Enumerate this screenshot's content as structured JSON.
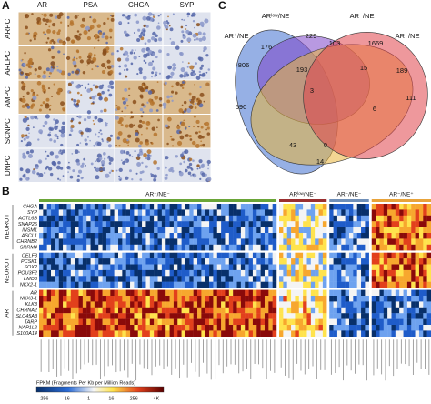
{
  "panel_a": {
    "label": "A",
    "columns": [
      "AR",
      "PSA",
      "CHGA",
      "SYP"
    ],
    "rows": [
      "ARPC",
      "ARLPC",
      "AMPC",
      "SCNPC",
      "DNPC"
    ]
  },
  "panel_c": {
    "label": "C",
    "sets": [
      "AR⁺/NE⁻",
      "ARˡᵒʷ/NE⁻",
      "AR⁻/NE⁺",
      "AR⁻/NE⁻"
    ],
    "counts": [
      "806",
      "176",
      "229",
      "103",
      "1669",
      "189",
      "193",
      "15",
      "111",
      "590",
      "3",
      "43",
      "0",
      "6",
      "14"
    ]
  },
  "panel_b": {
    "label": "B",
    "groups": [
      "AR⁺/NE⁻",
      "ARˡᵒʷ/NE⁻",
      "AR⁻/NE⁻",
      "AR⁻/NE⁺"
    ],
    "gene_sets": [
      {
        "name": "NEURO I",
        "genes": [
          "CHGA",
          "SYP",
          "ACTL6B",
          "SNAP25",
          "INSM1",
          "ASCL1",
          "CHRNB2",
          "SRRM4"
        ]
      },
      {
        "name": "NEURO II",
        "genes": [
          "CELF3",
          "PCSK1",
          "SOX2",
          "POU3F2",
          "LMO3",
          "NKX2-1"
        ]
      },
      {
        "name": "AR",
        "genes": [
          "AR",
          "NKX3-1",
          "KLK3",
          "CHRNA2",
          "SLC45A3",
          "TARP",
          "NAP1L2",
          "S100A14"
        ]
      }
    ],
    "colorbar": {
      "title": "FPKM (Fragments Per Kb per Million Reads)",
      "ticks": [
        "-256",
        "-16",
        "1",
        "16",
        "256",
        "4K"
      ]
    }
  }
}
